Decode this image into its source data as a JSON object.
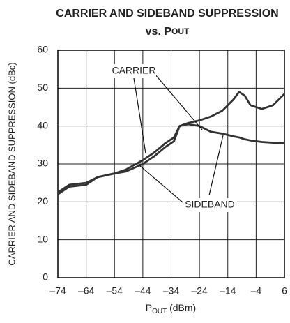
{
  "chart_data": {
    "type": "line",
    "title": "CARRIER AND SIDEBAND SUPPRESSION",
    "subtitle": [
      "vs. P",
      "OUT"
    ],
    "x_label": [
      "P",
      "OUT",
      " (dBm)"
    ],
    "y_label": "CARRIER AND SIDEBAND SUPPRESSION (dBc)",
    "annotations": [
      "CARRIER",
      "SIDEBAND"
    ],
    "x": [
      -74,
      -70,
      -64,
      -60,
      -54,
      -50,
      -44,
      -40,
      -36,
      -33,
      -31,
      -28,
      -24,
      -20,
      -16,
      -12,
      -10,
      -8,
      -6,
      -2,
      2,
      6
    ],
    "series": [
      {
        "name": "CARRIER",
        "color": "#333333",
        "values": [
          22.5,
          24.5,
          25,
          26.5,
          27.5,
          28.5,
          31,
          33,
          35.5,
          37,
          40,
          40.8,
          41.5,
          42.5,
          44,
          47,
          49,
          48,
          45.5,
          44.5,
          45.5,
          48.5
        ]
      },
      {
        "name": "SIDEBAND",
        "color": "#333333",
        "values": [
          22,
          24,
          24.5,
          26.5,
          27.5,
          28,
          30,
          32,
          34.5,
          36,
          40,
          40.5,
          40,
          38.5,
          38,
          37.3,
          37,
          36.5,
          36.2,
          35.8,
          35.6,
          35.6
        ]
      }
    ],
    "xlim": [
      -74,
      6
    ],
    "ylim": [
      0,
      60
    ],
    "xticks": [
      {
        "value": -74,
        "label": "–74"
      },
      {
        "value": -64,
        "label": "–64"
      },
      {
        "value": -54,
        "label": "–54"
      },
      {
        "value": -44,
        "label": "–44"
      },
      {
        "value": -34,
        "label": "–34"
      },
      {
        "value": -24,
        "label": "–24"
      },
      {
        "value": -14,
        "label": "–14"
      },
      {
        "value": -4,
        "label": "–4"
      },
      6
    ],
    "yticks": [
      0,
      10,
      20,
      30,
      40,
      50,
      60
    ],
    "grid": true
  }
}
